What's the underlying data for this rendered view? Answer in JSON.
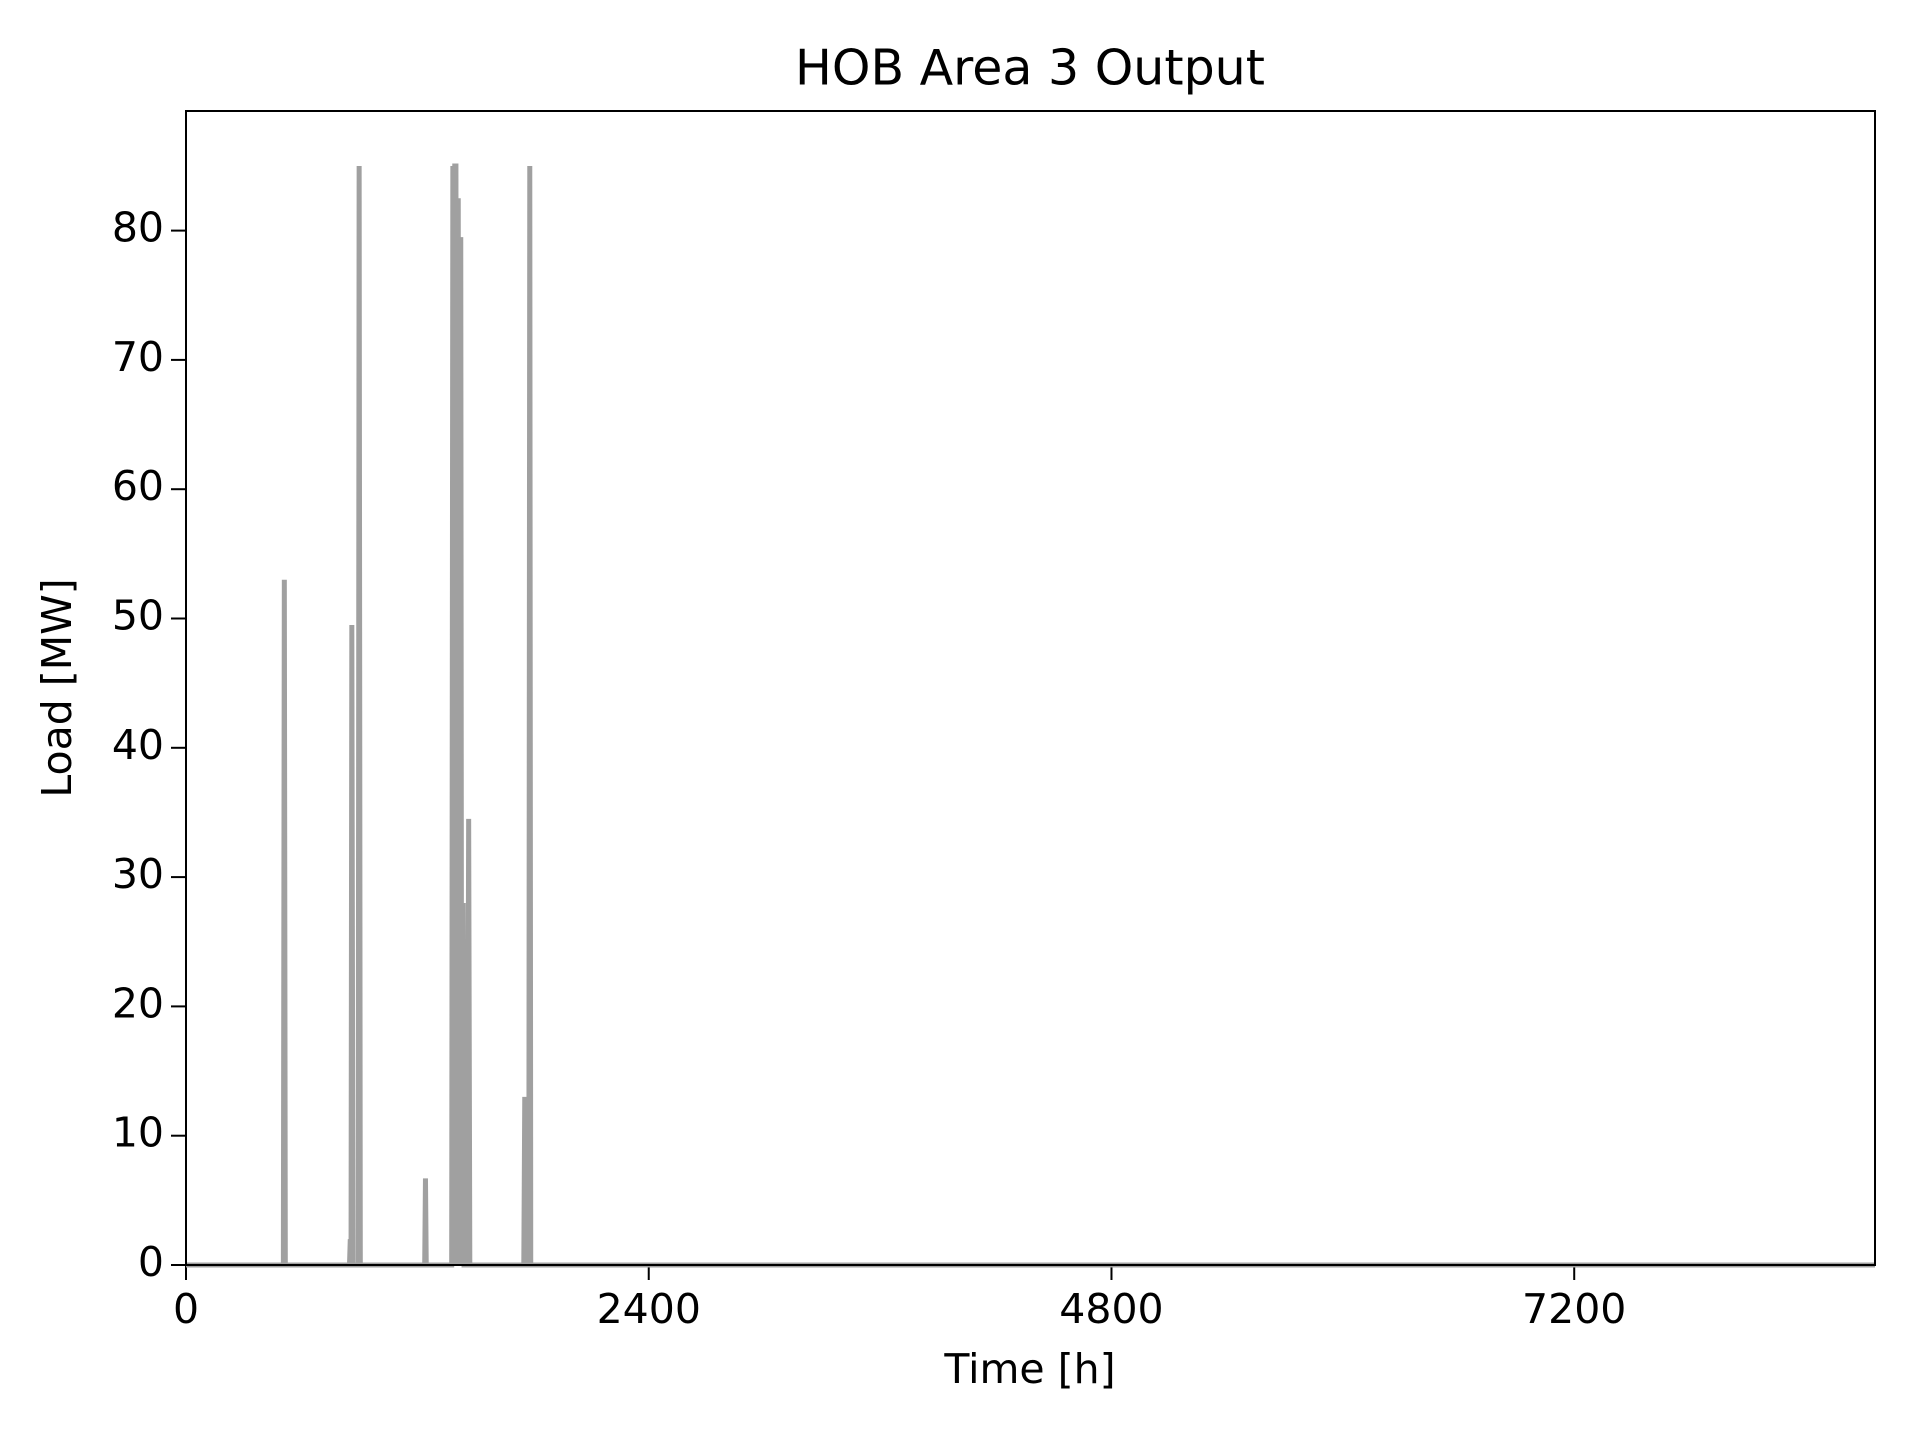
{
  "chart_data": {
    "type": "line",
    "title": "HOB Area 3 Output",
    "x_label": "Time [h]",
    "y_label": "Load [MW]",
    "x": [
      0,
      505,
      510,
      515,
      848,
      852,
      856,
      860,
      866,
      893,
      898,
      904,
      1238,
      1242,
      1246,
      1378,
      1384,
      1390,
      1394,
      1400,
      1406,
      1412,
      1418,
      1425,
      1430,
      1438,
      1442,
      1460,
      1466,
      1472,
      1752,
      1757,
      1762,
      1778,
      1783,
      1788,
      8760
    ],
    "values": [
      0,
      0,
      53,
      0,
      0,
      2,
      0,
      49.5,
      0,
      0,
      85,
      0,
      0,
      6.7,
      0,
      0,
      85,
      0,
      85,
      85,
      0,
      82.5,
      0,
      79.5,
      0,
      28,
      0,
      0,
      34.5,
      0,
      0,
      13,
      0,
      0,
      85,
      0,
      0
    ],
    "color": "#a0a0a0",
    "xlim": [
      0,
      8760
    ],
    "xticks": [
      0,
      2400,
      4800,
      7200
    ],
    "ylim": [
      0,
      89.25
    ],
    "yticks": [
      0,
      10,
      20,
      30,
      40,
      50,
      60,
      70,
      80
    ],
    "grid": false
  }
}
